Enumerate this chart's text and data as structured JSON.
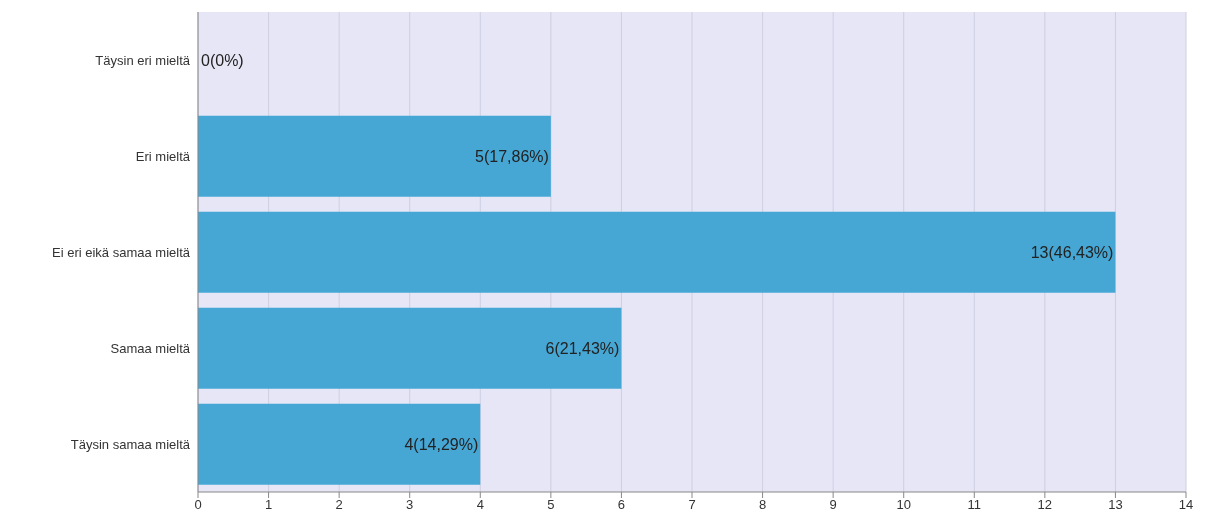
{
  "chart_data": {
    "type": "bar",
    "orientation": "horizontal",
    "categories": [
      "Täysin eri mieltä",
      "Eri mieltä",
      "Ei eri eikä samaa mieltä",
      "Samaa mieltä",
      "Täysin samaa mieltä"
    ],
    "values": [
      0,
      5,
      13,
      6,
      4
    ],
    "value_labels": [
      "0(0%)",
      "5(17,86%)",
      "13(46,43%)",
      "6(21,43%)",
      "4(14,29%)"
    ],
    "color": "#46a7d5",
    "xlim": [
      0,
      14
    ],
    "xticks": [
      0,
      1,
      2,
      3,
      4,
      5,
      6,
      7,
      8,
      9,
      10,
      11,
      12,
      13,
      14
    ],
    "grid": "x"
  }
}
